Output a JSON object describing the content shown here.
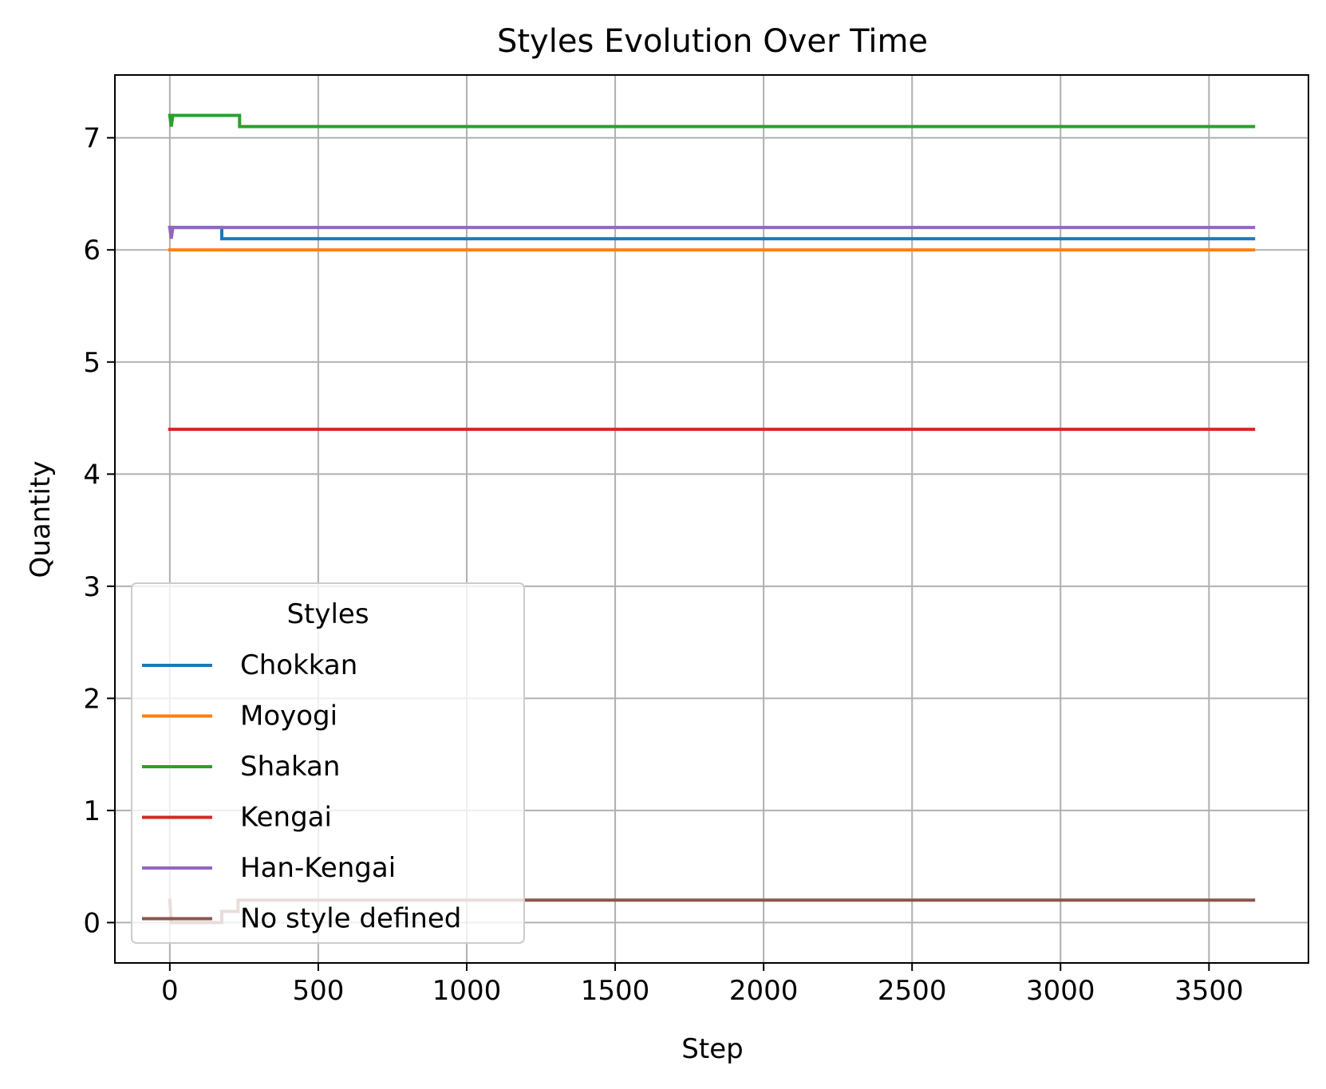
{
  "chart_data": {
    "type": "line",
    "title": "Styles Evolution Over Time",
    "xlabel": "Step",
    "ylabel": "Quantity",
    "xlim": [
      -185,
      3835
    ],
    "ylim": [
      -0.36,
      7.56
    ],
    "xticks": [
      0,
      500,
      1000,
      1500,
      2000,
      2500,
      3000,
      3500
    ],
    "yticks": [
      0,
      1,
      2,
      3,
      4,
      5,
      6,
      7
    ],
    "grid": true,
    "legend": {
      "title": "Styles",
      "placement": "lower-left"
    },
    "series": [
      {
        "name": "Chokkan",
        "color": "#1f77b4",
        "points": [
          [
            0,
            6.2
          ],
          [
            175,
            6.2
          ],
          [
            175,
            6.1
          ],
          [
            3650,
            6.1
          ]
        ]
      },
      {
        "name": "Moyogi",
        "color": "#ff7f0e",
        "points": [
          [
            0,
            6.0
          ],
          [
            3650,
            6.0
          ]
        ]
      },
      {
        "name": "Shakan",
        "color": "#2ca02c",
        "points": [
          [
            0,
            7.2
          ],
          [
            5,
            7.1
          ],
          [
            10,
            7.2
          ],
          [
            235,
            7.2
          ],
          [
            235,
            7.1
          ],
          [
            3650,
            7.1
          ]
        ]
      },
      {
        "name": "Kengai",
        "color": "#d62728",
        "points": [
          [
            0,
            4.4
          ],
          [
            3650,
            4.4
          ]
        ]
      },
      {
        "name": "Han-Kengai",
        "color": "#9467bd",
        "points": [
          [
            0,
            6.2
          ],
          [
            5,
            6.1
          ],
          [
            10,
            6.2
          ],
          [
            3650,
            6.2
          ]
        ]
      },
      {
        "name": "No style defined",
        "color": "#8c564b",
        "points": [
          [
            0,
            0.2
          ],
          [
            5,
            0.0
          ],
          [
            175,
            0.0
          ],
          [
            175,
            0.1
          ],
          [
            230,
            0.1
          ],
          [
            230,
            0.2
          ],
          [
            3650,
            0.2
          ]
        ]
      }
    ]
  }
}
